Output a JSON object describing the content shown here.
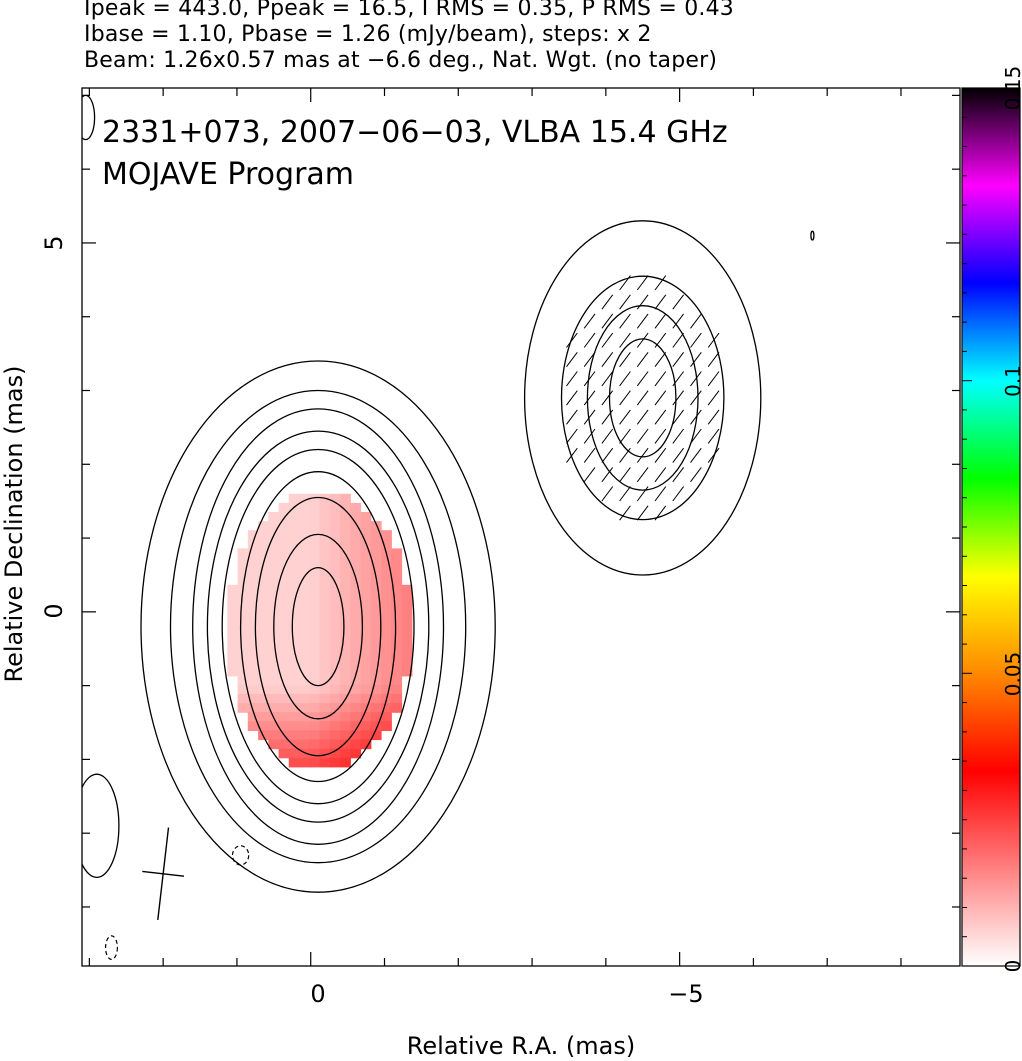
{
  "header": {
    "line1": "Ipeak = 443.0, Ppeak = 16.5, I RMS = 0.35, P RMS = 0.43",
    "line2": "Ibase = 1.10, Pbase = 1.26 (mJy/beam), steps: x 2",
    "line3": "Beam: 1.26x0.57 mas at −6.6 deg., Nat. Wgt. (no taper)"
  },
  "chart_data": {
    "type": "heatmap",
    "title": "2331+073, 2007−06−03, VLBA 15.4 GHz",
    "subtitle": "MOJAVE Program",
    "xlabel": "Relative R.A. (mas)",
    "ylabel": "Relative Declination (mas)",
    "xlim": [
      3.1,
      -8.8
    ],
    "ylim": [
      -4.8,
      7.1
    ],
    "x_ticks": [
      0,
      -5
    ],
    "x_tick_labels": [
      "0",
      "−5"
    ],
    "y_ticks": [
      0,
      5
    ],
    "y_tick_labels": [
      "0",
      "5"
    ],
    "colorbar": {
      "min": 0,
      "max": 0.15,
      "ticks": [
        0,
        0.05,
        0.1,
        0.15
      ],
      "tick_labels": [
        "0",
        "0.05",
        "0.1",
        "0.15"
      ],
      "colors": [
        "#ffffff",
        "#ff8080",
        "#ff0000",
        "#ff8800",
        "#ffff00",
        "#00ff00",
        "#00ffff",
        "#0000ff",
        "#ff00ff",
        "#000000"
      ]
    },
    "contours": {
      "core": {
        "center": [
          -0.1,
          -0.2
        ],
        "sizes": [
          [
            4.8,
            7.2
          ],
          [
            4.0,
            6.4
          ],
          [
            3.4,
            5.9
          ],
          [
            3.0,
            5.3
          ],
          [
            2.6,
            4.8
          ],
          [
            2.1,
            4.2
          ],
          [
            1.7,
            3.5
          ],
          [
            1.2,
            2.5
          ],
          [
            0.7,
            1.6
          ]
        ]
      },
      "component": {
        "center": [
          -4.5,
          2.9
        ],
        "sizes": [
          [
            3.2,
            4.8
          ],
          [
            2.2,
            3.3
          ],
          [
            1.5,
            2.5
          ],
          [
            0.9,
            1.6
          ]
        ]
      }
    },
    "beam": {
      "major_mas": 1.26,
      "minor_mas": 0.57,
      "pa_deg": -6.6,
      "position": "bottom-left"
    },
    "fractional_polarization_range": [
      0,
      0.15
    ]
  }
}
